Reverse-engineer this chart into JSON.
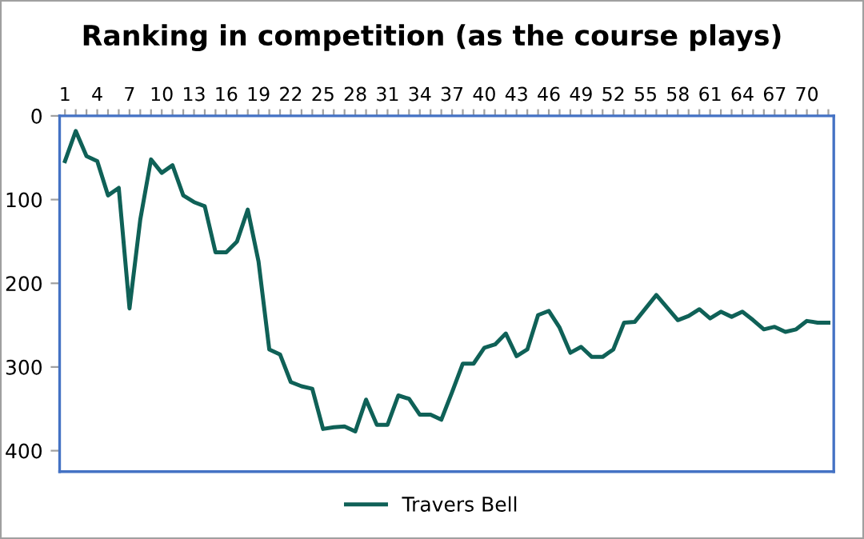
{
  "chart_data": {
    "type": "line",
    "title": "Ranking in competition (as the course plays)",
    "categories": [
      "1",
      null,
      null,
      "4",
      null,
      null,
      "7",
      null,
      null,
      "10",
      null,
      null,
      "13",
      null,
      null,
      "16",
      null,
      null,
      "19",
      null,
      null,
      "22",
      null,
      null,
      "25",
      null,
      null,
      "28",
      null,
      null,
      "31",
      null,
      null,
      "34",
      null,
      null,
      "37",
      null,
      null,
      "40",
      null,
      null,
      "43",
      null,
      null,
      "46",
      null,
      null,
      "49",
      null,
      null,
      "52",
      null,
      null,
      "55",
      null,
      null,
      "58",
      null,
      null,
      "61",
      null,
      null,
      "64",
      null,
      null,
      "67",
      null,
      null,
      "70",
      null,
      null
    ],
    "series": [
      {
        "name": "Travers Bell",
        "color": "#0f6157",
        "values": [
          54,
          18,
          48,
          54,
          95,
          86,
          230,
          124,
          52,
          68,
          59,
          95,
          103,
          108,
          163,
          163,
          150,
          112,
          174,
          279,
          285,
          318,
          323,
          326,
          374,
          372,
          371,
          377,
          339,
          369,
          369,
          334,
          338,
          357,
          357,
          363,
          330,
          296,
          296,
          277,
          273,
          260,
          287,
          279,
          238,
          233,
          253,
          283,
          276,
          288,
          288,
          279,
          247,
          246,
          230,
          214,
          229,
          244,
          239,
          231,
          242,
          234,
          240,
          234,
          244,
          255,
          252,
          258,
          255,
          245,
          247,
          247
        ]
      }
    ],
    "ylim": [
      425,
      0
    ],
    "yticks": [
      0,
      100,
      200,
      300,
      400
    ],
    "grid": false,
    "legend": "bottom",
    "marker": "none",
    "line_style": "solid"
  }
}
